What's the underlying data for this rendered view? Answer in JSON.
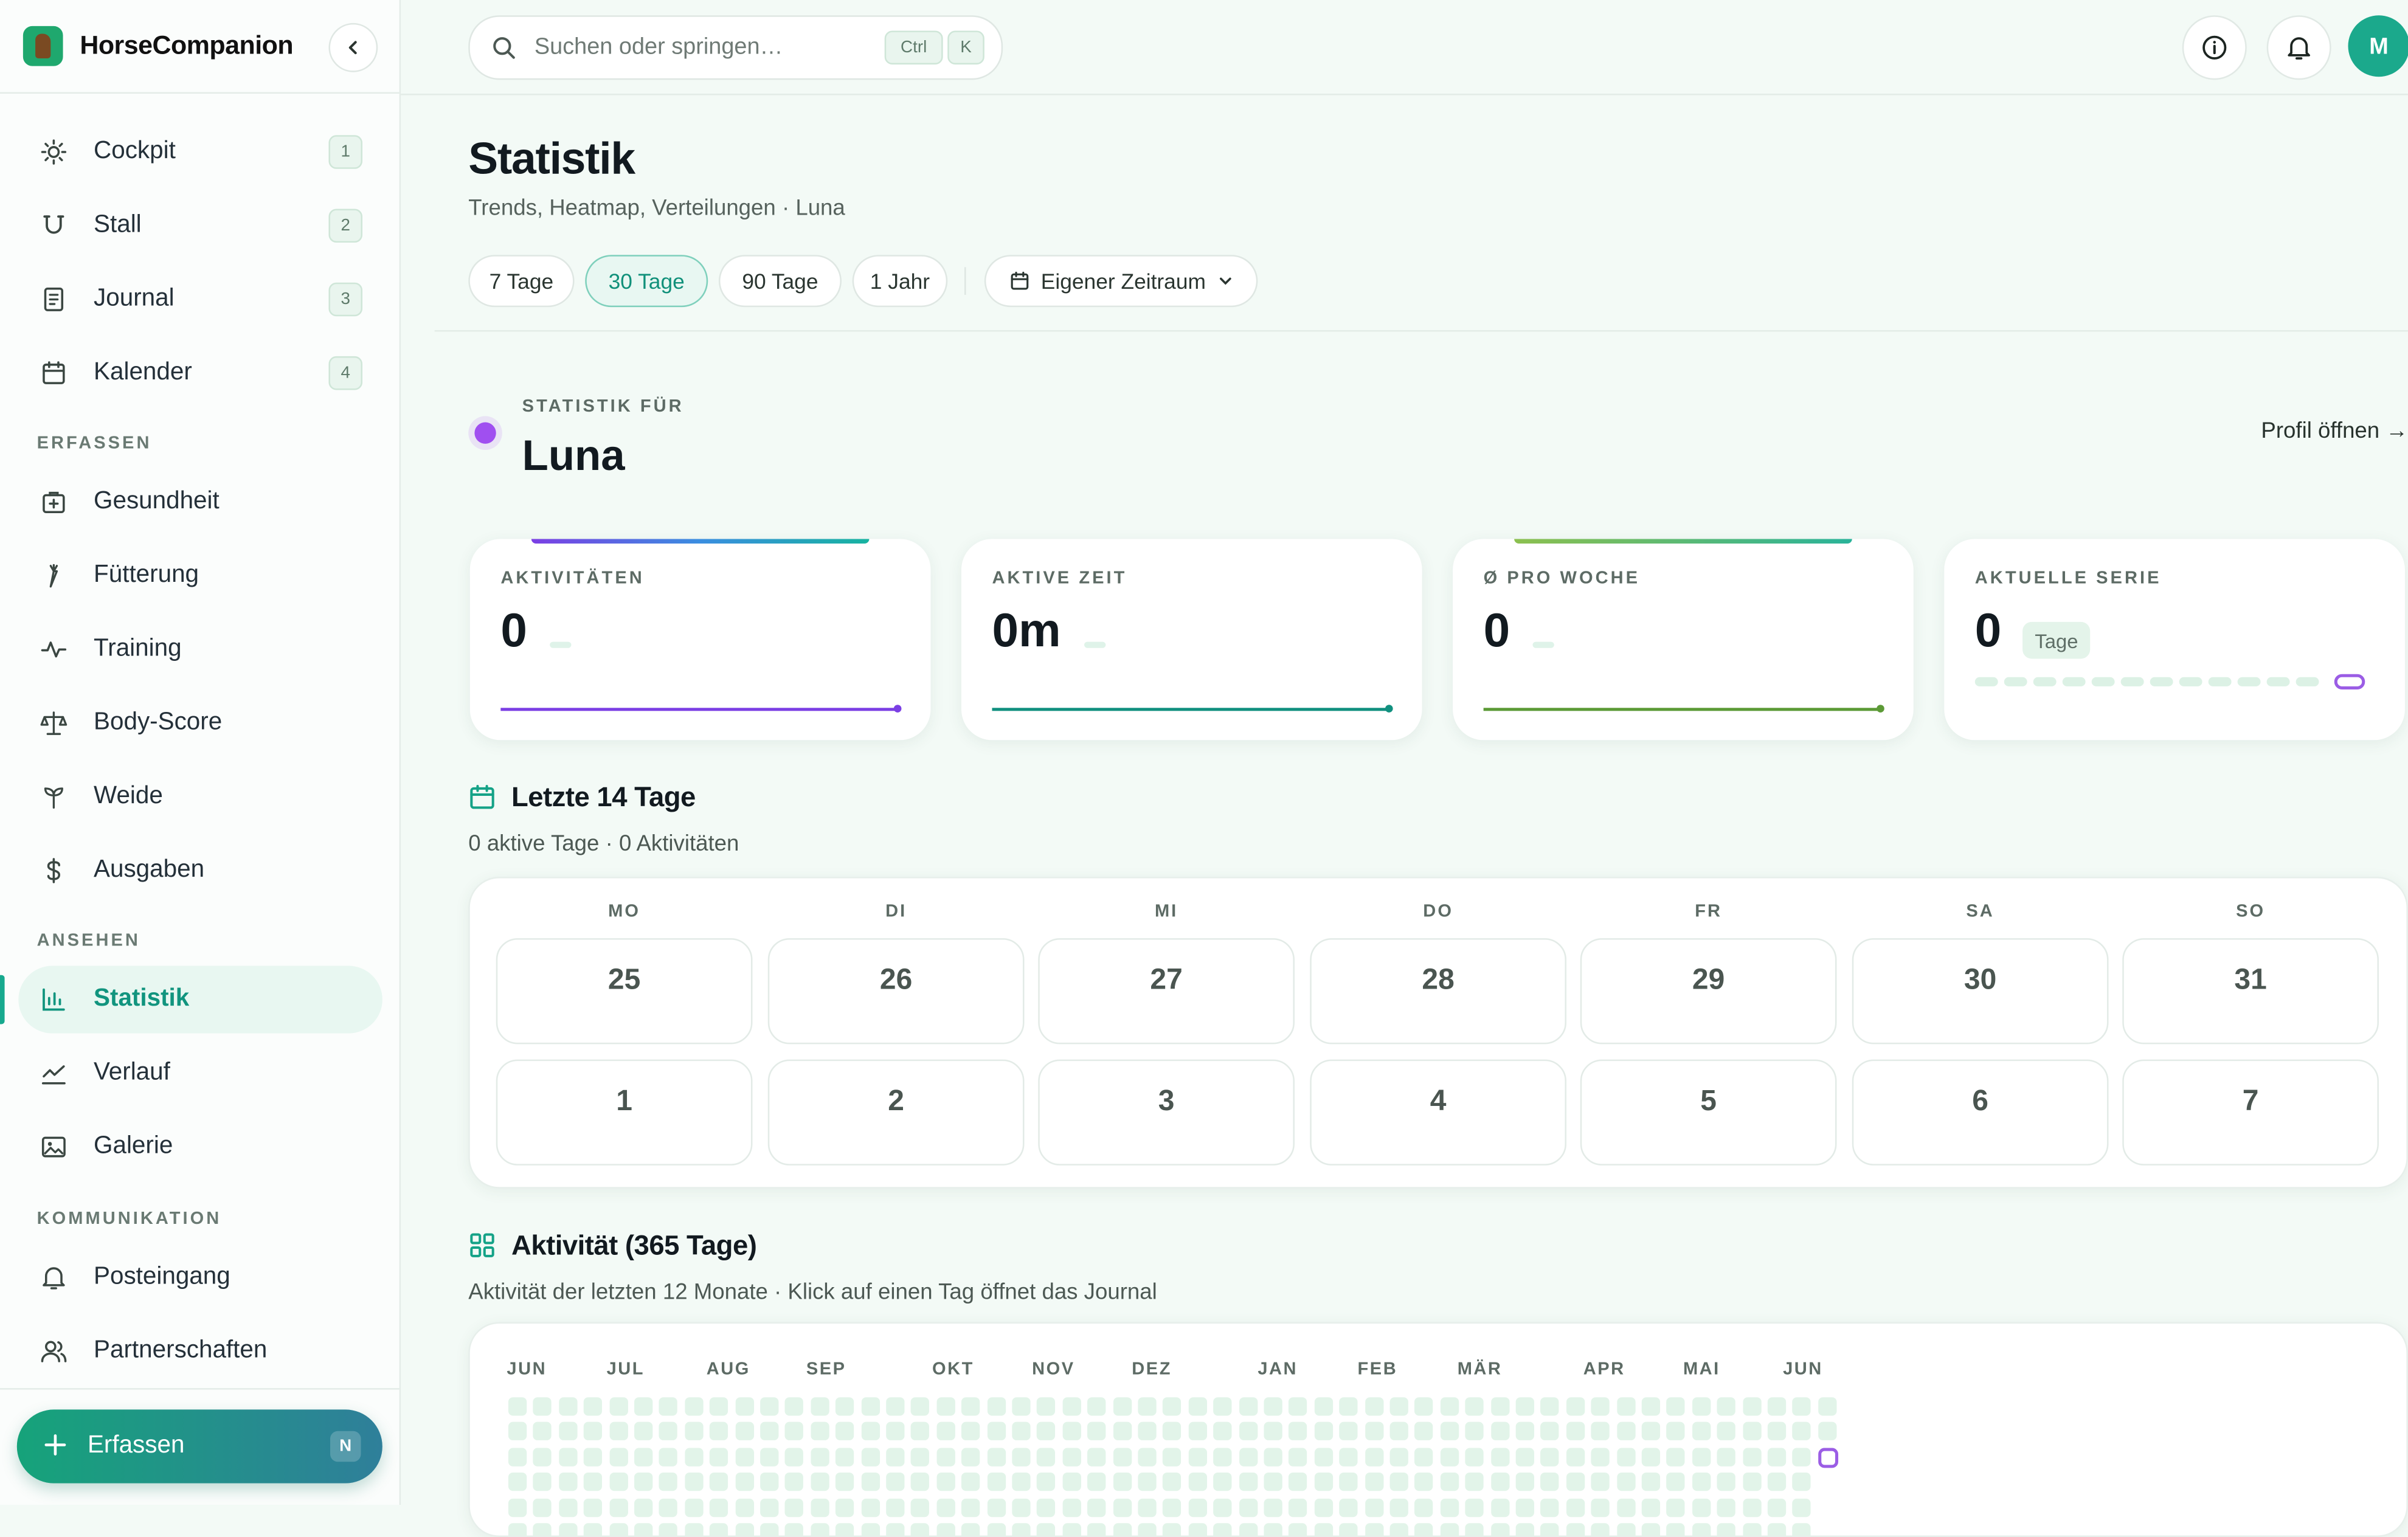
{
  "app": {
    "name": "HorseCompanion"
  },
  "search": {
    "placeholder": "Suchen oder springen…",
    "kbd_ctrl": "Ctrl",
    "kbd_k": "K"
  },
  "user": {
    "initial": "M"
  },
  "sidebar": {
    "main_items": [
      {
        "label": "Cockpit",
        "shortcut": "1",
        "icon": "sun-icon"
      },
      {
        "label": "Stall",
        "shortcut": "2",
        "icon": "horseshoe-icon"
      },
      {
        "label": "Journal",
        "shortcut": "3",
        "icon": "journal-icon"
      },
      {
        "label": "Kalender",
        "shortcut": "4",
        "icon": "calendar-icon"
      }
    ],
    "section_erfassen": "ERFASSEN",
    "erfassen_items": [
      {
        "label": "Gesundheit",
        "icon": "medical-kit-icon"
      },
      {
        "label": "Fütterung",
        "icon": "carrot-icon"
      },
      {
        "label": "Training",
        "icon": "activity-icon"
      },
      {
        "label": "Body-Score",
        "icon": "scale-icon"
      },
      {
        "label": "Weide",
        "icon": "sprout-icon"
      },
      {
        "label": "Ausgaben",
        "icon": "dollar-icon"
      }
    ],
    "section_ansehen": "ANSEHEN",
    "ansehen_items": [
      {
        "label": "Statistik",
        "icon": "bar-chart-icon",
        "active": true
      },
      {
        "label": "Verlauf",
        "icon": "trend-icon"
      },
      {
        "label": "Galerie",
        "icon": "image-icon"
      }
    ],
    "section_kommunikation": "KOMMUNIKATION",
    "kommunikation_items": [
      {
        "label": "Posteingang",
        "icon": "bell-icon"
      },
      {
        "label": "Partnerschaften",
        "icon": "users-icon"
      }
    ],
    "create_button": {
      "label": "Erfassen",
      "shortcut": "N"
    }
  },
  "page": {
    "title": "Statistik",
    "subtitle": "Trends, Heatmap, Verteilungen · Luna",
    "ranges": [
      "7 Tage",
      "30 Tage",
      "90 Tage",
      "1 Jahr"
    ],
    "active_range": "30 Tage",
    "custom_range": "Eigener Zeitraum"
  },
  "horse": {
    "for_label": "STATISTIK FÜR",
    "name": "Luna",
    "profile_link": "Profil öffnen →",
    "color": "#a04ff0"
  },
  "kpis": [
    {
      "label": "AKTIVITÄTEN",
      "value": "0",
      "accent": "#7b3fe4"
    },
    {
      "label": "AKTIVE ZEIT",
      "value": "0m",
      "accent": "#11907f"
    },
    {
      "label": "Ø PRO WOCHE",
      "value": "0",
      "accent": "#5c9a36"
    },
    {
      "label": "AKTUELLE SERIE",
      "value": "0",
      "unit": "Tage",
      "accent": "#9b5de5"
    }
  ],
  "last14": {
    "title": "Letzte 14 Tage",
    "subtitle": "0 aktive Tage · 0 Aktivitäten",
    "weekdays": [
      "MO",
      "DI",
      "MI",
      "DO",
      "FR",
      "SA",
      "SO"
    ],
    "days": [
      "25",
      "26",
      "27",
      "28",
      "29",
      "30",
      "31",
      "1",
      "2",
      "3",
      "4",
      "5",
      "6",
      "7"
    ]
  },
  "heatmap": {
    "title": "Aktivität (365 Tage)",
    "subtitle": "Aktivität der letzten 12 Monate · Klick auf einen Tag öffnet das Journal",
    "months": [
      "JUN",
      "JUL",
      "AUG",
      "SEP",
      "OKT",
      "NOV",
      "DEZ",
      "JAN",
      "FEB",
      "MÄR",
      "APR",
      "MAI",
      "JUN"
    ]
  },
  "colors": {
    "brand": "#17a98e",
    "accent_purple": "#9b5de5",
    "empty_cell": "#e2f4e9"
  }
}
